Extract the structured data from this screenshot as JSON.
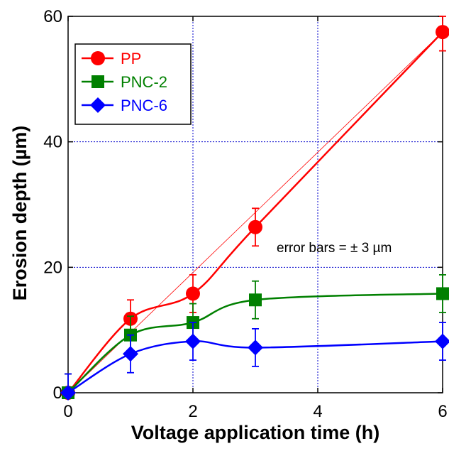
{
  "chart_data": {
    "type": "line",
    "xlabel": "Voltage application time  (h)",
    "ylabel": "Erosion depth (µm)",
    "xlim": [
      0,
      6
    ],
    "ylim": [
      0,
      60
    ],
    "xticks": [
      0,
      2,
      4,
      6
    ],
    "yticks": [
      0,
      20,
      40,
      60
    ],
    "grid": true,
    "legend_position": "top-left",
    "error_bar": 3,
    "annotation": "error bars = ± 3 µm",
    "x": [
      0,
      1,
      2,
      3,
      6
    ],
    "series": [
      {
        "name": "PP",
        "values": [
          0,
          11.8,
          15.8,
          26.4,
          57.5
        ],
        "color": "#ff0000",
        "marker": "circle"
      },
      {
        "name": "PNC-2",
        "values": [
          0,
          9.2,
          11.2,
          14.8,
          15.8
        ],
        "color": "#008000",
        "marker": "square"
      },
      {
        "name": "PNC-6",
        "values": [
          0,
          6.2,
          8.2,
          7.2,
          8.2
        ],
        "color": "#0000ff",
        "marker": "diamond"
      }
    ],
    "reference_line": {
      "x": [
        0,
        6
      ],
      "y": [
        0,
        57.5
      ],
      "color": "#ff0000"
    }
  }
}
